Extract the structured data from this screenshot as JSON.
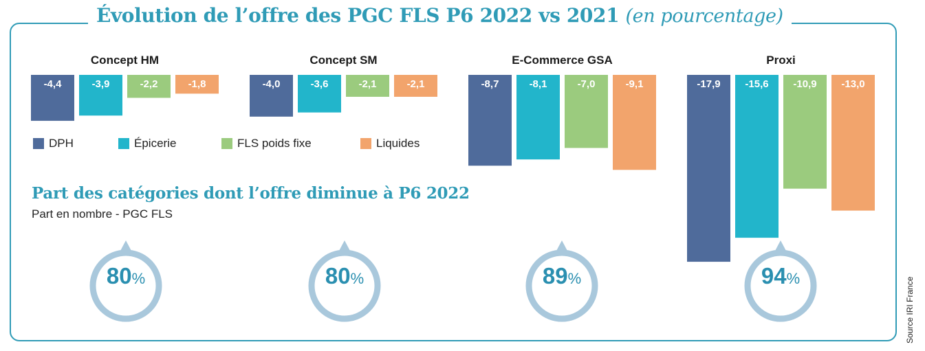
{
  "title": {
    "main": "Évolution de l’offre des PGC FLS P6 2022 vs 2021",
    "sub": "(en pourcentage)"
  },
  "colors": {
    "frame": "#2f9bb6",
    "title": "#2f9bb6",
    "ring": "#a9c8dc",
    "ring_value": "#2a8fb0"
  },
  "chart_data": {
    "type": "bar",
    "orientation": "negative-downward",
    "categories": [
      "DPH",
      "Épicerie",
      "FLS poids fixe",
      "Liquides"
    ],
    "category_colors": [
      "#4f6b9b",
      "#22b5cb",
      "#9bcb7e",
      "#f2a46c"
    ],
    "groups": [
      {
        "name": "Concept HM",
        "values": [
          -4.4,
          -3.9,
          -2.2,
          -1.8
        ],
        "labels": [
          "-4,4",
          "-3,9",
          "-2,2",
          "-1,8"
        ]
      },
      {
        "name": "Concept SM",
        "values": [
          -4.0,
          -3.6,
          -2.1,
          -2.1
        ],
        "labels": [
          "-4,0",
          "-3,6",
          "-2,1",
          "-2,1"
        ]
      },
      {
        "name": "E-Commerce GSA",
        "values": [
          -8.7,
          -8.1,
          -7.0,
          -9.1
        ],
        "labels": [
          "-8,7",
          "-8,1",
          "-7,0",
          "-9,1"
        ]
      },
      {
        "name": "Proxi",
        "values": [
          -17.9,
          -15.6,
          -10.9,
          -13.0
        ],
        "labels": [
          "-17,9",
          "-15,6",
          "-10,9",
          "-13,0"
        ]
      }
    ],
    "legend": [
      "DPH",
      "Épicerie",
      "FLS poids fixe",
      "Liquides"
    ],
    "legend_position": "bottom-left",
    "grid": false
  },
  "part": {
    "title": "Part des catégories dont l’offre diminue à P6 2022",
    "subtitle": "Part en nombre - PGC FLS",
    "values": [
      {
        "group": "Concept HM",
        "value": 80,
        "text": "80"
      },
      {
        "group": "Concept SM",
        "value": 80,
        "text": "80"
      },
      {
        "group": "E-Commerce GSA",
        "value": 89,
        "text": "89"
      },
      {
        "group": "Proxi",
        "value": 94,
        "text": "94"
      }
    ],
    "unit": "%"
  },
  "source": "Source IRI France"
}
